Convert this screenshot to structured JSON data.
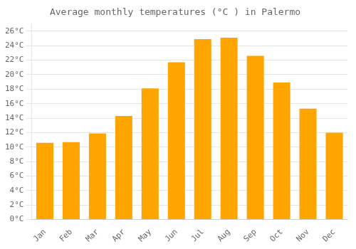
{
  "chart_data": {
    "type": "bar",
    "title": "Average monthly temperatures (°C ) in Palermo",
    "categories": [
      "Jan",
      "Feb",
      "Mar",
      "Apr",
      "May",
      "Jun",
      "Jul",
      "Aug",
      "Sep",
      "Oct",
      "Nov",
      "Dec"
    ],
    "values": [
      10.6,
      10.7,
      11.9,
      14.3,
      18.1,
      21.7,
      24.9,
      25.1,
      22.6,
      18.9,
      15.3,
      12.0
    ],
    "color": "#FFA500",
    "ylim": [
      0,
      27
    ],
    "yticks": [
      {
        "value": 0,
        "label": "0°C"
      },
      {
        "value": 2,
        "label": "2°C"
      },
      {
        "value": 4,
        "label": "4°C"
      },
      {
        "value": 6,
        "label": "6°C"
      },
      {
        "value": 8,
        "label": "8°C"
      },
      {
        "value": 10,
        "label": "10°C"
      },
      {
        "value": 12,
        "label": "12°C"
      },
      {
        "value": 14,
        "label": "14°C"
      },
      {
        "value": 16,
        "label": "16°C"
      },
      {
        "value": 18,
        "label": "18°C"
      },
      {
        "value": 20,
        "label": "20°C"
      },
      {
        "value": 22,
        "label": "22°C"
      },
      {
        "value": 24,
        "label": "24°C"
      },
      {
        "value": 26,
        "label": "26°C"
      }
    ],
    "grid": true
  }
}
